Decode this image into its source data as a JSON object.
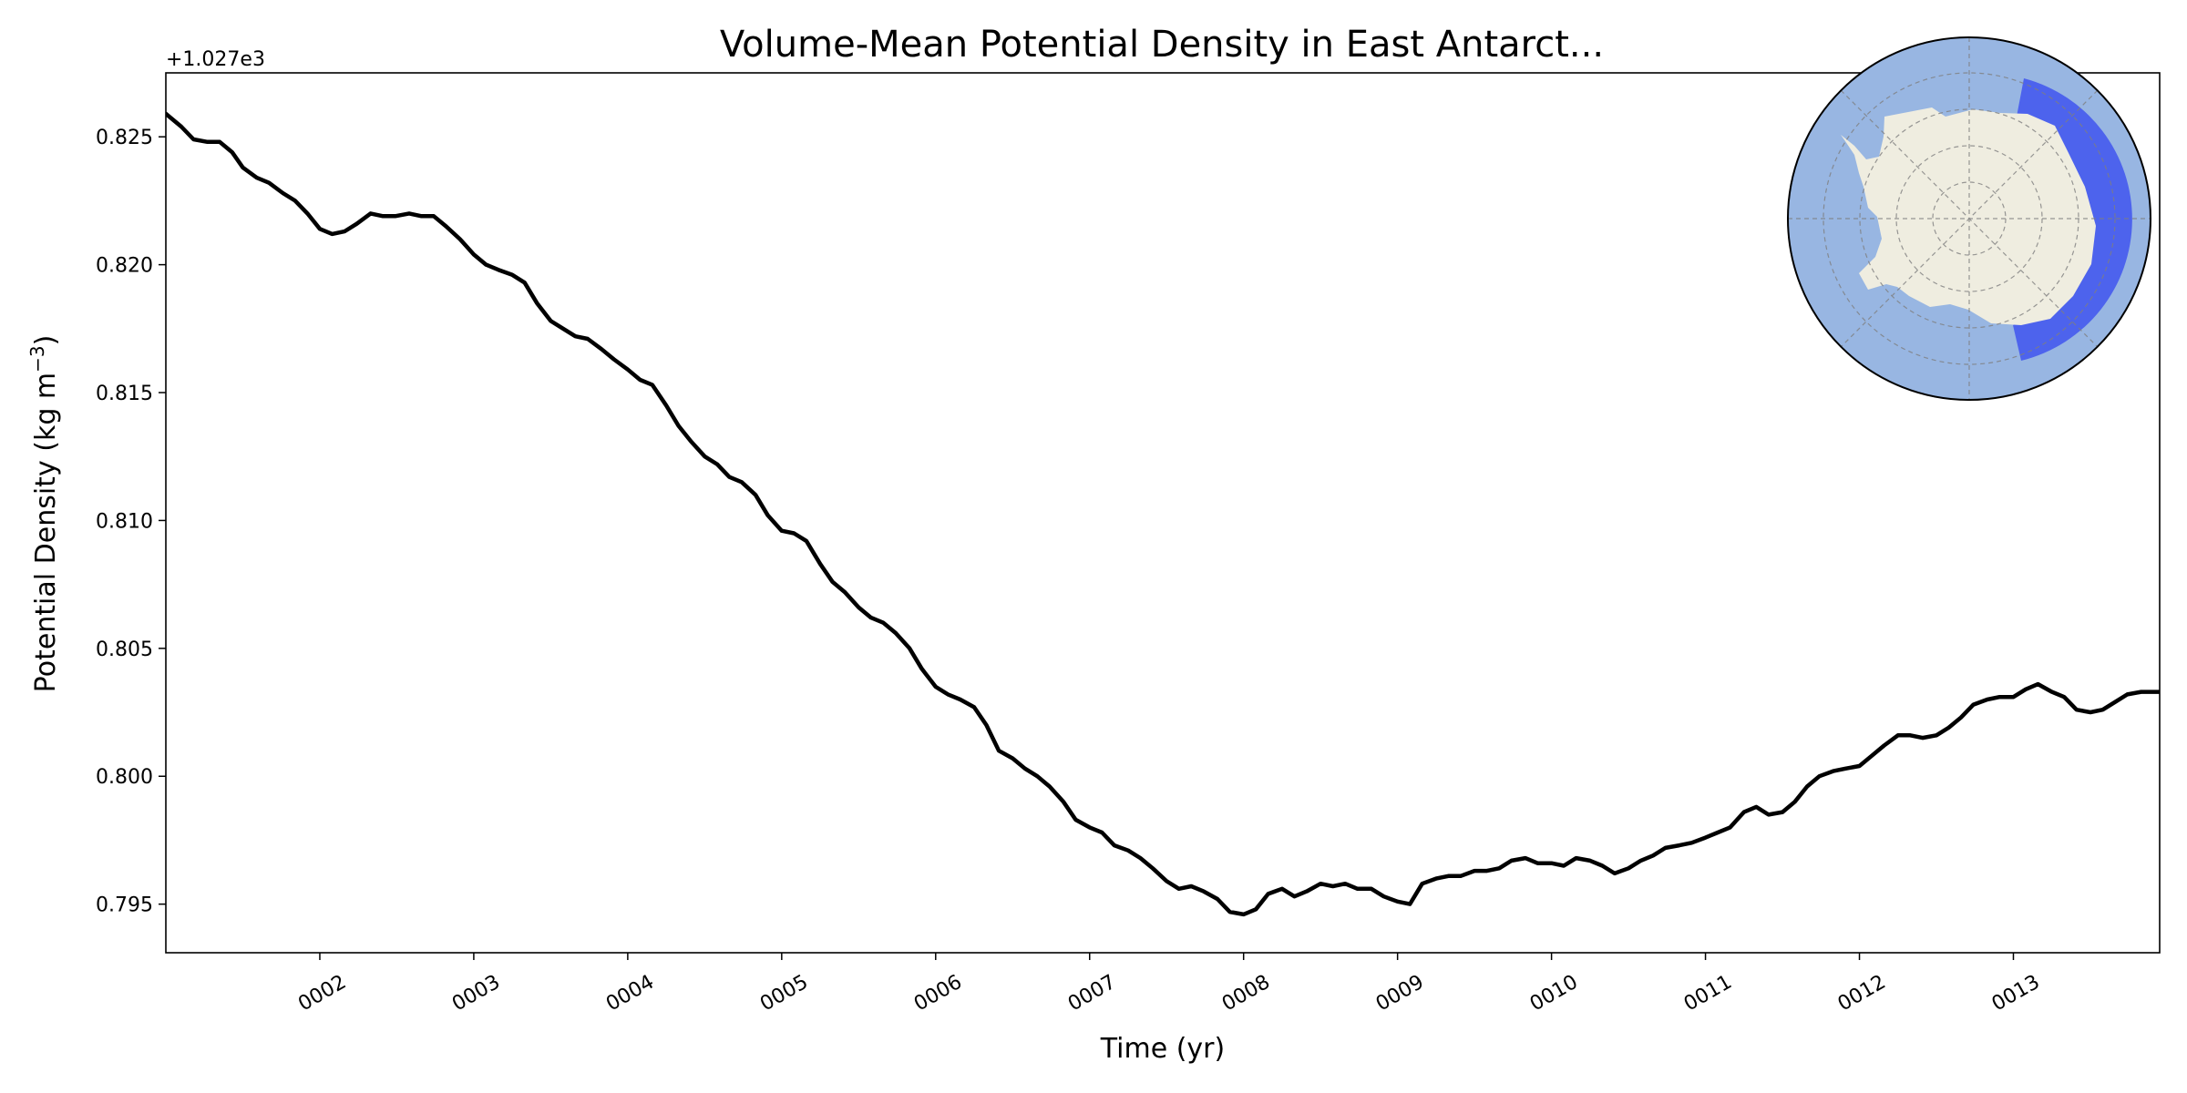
{
  "chart_data": {
    "type": "line",
    "title": "Volume-Mean Potential Density in East Antarct...",
    "xlabel": "Time (yr)",
    "ylabel_main": "Potential Density (kg m",
    "ylabel_sup": "−3",
    "ylabel_close": ")",
    "y_offset_label": "+1.027e3",
    "xlim": [
      1.0,
      13.95
    ],
    "ylim": [
      0.7931,
      0.8275
    ],
    "x_tick_values": [
      2,
      3,
      4,
      5,
      6,
      7,
      8,
      9,
      10,
      11,
      12,
      13
    ],
    "x_tick_labels": [
      "0002",
      "0003",
      "0004",
      "0005",
      "0006",
      "0007",
      "0008",
      "0009",
      "0010",
      "0011",
      "0012",
      "0013"
    ],
    "y_tick_values": [
      0.795,
      0.8,
      0.805,
      0.81,
      0.815,
      0.82,
      0.825
    ],
    "y_tick_labels": [
      "0.795",
      "0.800",
      "0.805",
      "0.810",
      "0.815",
      "0.820",
      "0.825"
    ],
    "series": [
      {
        "color": "#000000",
        "points": [
          [
            1.0,
            0.8259
          ],
          [
            1.1,
            0.8254
          ],
          [
            1.18,
            0.8249
          ],
          [
            1.27,
            0.8248
          ],
          [
            1.35,
            0.8248
          ],
          [
            1.43,
            0.8244
          ],
          [
            1.5,
            0.8238
          ],
          [
            1.59,
            0.8234
          ],
          [
            1.67,
            0.8232
          ],
          [
            1.76,
            0.8228
          ],
          [
            1.84,
            0.8225
          ],
          [
            1.92,
            0.822
          ],
          [
            2.0,
            0.8214
          ],
          [
            2.08,
            0.8212
          ],
          [
            2.16,
            0.8213
          ],
          [
            2.24,
            0.8216
          ],
          [
            2.33,
            0.822
          ],
          [
            2.41,
            0.8219
          ],
          [
            2.49,
            0.8219
          ],
          [
            2.58,
            0.822
          ],
          [
            2.66,
            0.8219
          ],
          [
            2.74,
            0.8219
          ],
          [
            2.82,
            0.8215
          ],
          [
            2.91,
            0.821
          ],
          [
            3.0,
            0.8204
          ],
          [
            3.08,
            0.82
          ],
          [
            3.16,
            0.8198
          ],
          [
            3.25,
            0.8196
          ],
          [
            3.33,
            0.8193
          ],
          [
            3.41,
            0.8185
          ],
          [
            3.5,
            0.8178
          ],
          [
            3.58,
            0.8175
          ],
          [
            3.66,
            0.8172
          ],
          [
            3.74,
            0.8171
          ],
          [
            3.83,
            0.8167
          ],
          [
            3.91,
            0.8163
          ],
          [
            4.0,
            0.8159
          ],
          [
            4.08,
            0.8155
          ],
          [
            4.16,
            0.8153
          ],
          [
            4.25,
            0.8145
          ],
          [
            4.33,
            0.8137
          ],
          [
            4.41,
            0.8131
          ],
          [
            4.5,
            0.8125
          ],
          [
            4.58,
            0.8122
          ],
          [
            4.66,
            0.8117
          ],
          [
            4.74,
            0.8115
          ],
          [
            4.83,
            0.811
          ],
          [
            4.91,
            0.8102
          ],
          [
            5.0,
            0.8096
          ],
          [
            5.08,
            0.8095
          ],
          [
            5.16,
            0.8092
          ],
          [
            5.25,
            0.8083
          ],
          [
            5.33,
            0.8076
          ],
          [
            5.41,
            0.8072
          ],
          [
            5.5,
            0.8066
          ],
          [
            5.58,
            0.8062
          ],
          [
            5.66,
            0.806
          ],
          [
            5.74,
            0.8056
          ],
          [
            5.83,
            0.805
          ],
          [
            5.91,
            0.8042
          ],
          [
            6.0,
            0.8035
          ],
          [
            6.08,
            0.8032
          ],
          [
            6.16,
            0.803
          ],
          [
            6.25,
            0.8027
          ],
          [
            6.33,
            0.802
          ],
          [
            6.41,
            0.801
          ],
          [
            6.5,
            0.8007
          ],
          [
            6.58,
            0.8003
          ],
          [
            6.66,
            0.8
          ],
          [
            6.74,
            0.7996
          ],
          [
            6.83,
            0.799
          ],
          [
            6.91,
            0.7983
          ],
          [
            7.0,
            0.798
          ],
          [
            7.08,
            0.7978
          ],
          [
            7.16,
            0.7973
          ],
          [
            7.25,
            0.7971
          ],
          [
            7.33,
            0.7968
          ],
          [
            7.41,
            0.7964
          ],
          [
            7.5,
            0.7959
          ],
          [
            7.58,
            0.7956
          ],
          [
            7.66,
            0.7957
          ],
          [
            7.74,
            0.7955
          ],
          [
            7.83,
            0.7952
          ],
          [
            7.91,
            0.7947
          ],
          [
            8.0,
            0.7946
          ],
          [
            8.08,
            0.7948
          ],
          [
            8.16,
            0.7954
          ],
          [
            8.25,
            0.7956
          ],
          [
            8.33,
            0.7953
          ],
          [
            8.41,
            0.7955
          ],
          [
            8.5,
            0.7958
          ],
          [
            8.58,
            0.7957
          ],
          [
            8.66,
            0.7958
          ],
          [
            8.74,
            0.7956
          ],
          [
            8.83,
            0.7956
          ],
          [
            8.91,
            0.7953
          ],
          [
            9.0,
            0.7951
          ],
          [
            9.08,
            0.795
          ],
          [
            9.16,
            0.7958
          ],
          [
            9.25,
            0.796
          ],
          [
            9.33,
            0.7961
          ],
          [
            9.41,
            0.7961
          ],
          [
            9.5,
            0.7963
          ],
          [
            9.58,
            0.7963
          ],
          [
            9.66,
            0.7964
          ],
          [
            9.74,
            0.7967
          ],
          [
            9.83,
            0.7968
          ],
          [
            9.91,
            0.7966
          ],
          [
            10.0,
            0.7966
          ],
          [
            10.08,
            0.7965
          ],
          [
            10.16,
            0.7968
          ],
          [
            10.25,
            0.7967
          ],
          [
            10.33,
            0.7965
          ],
          [
            10.41,
            0.7962
          ],
          [
            10.5,
            0.7964
          ],
          [
            10.58,
            0.7967
          ],
          [
            10.66,
            0.7969
          ],
          [
            10.74,
            0.7972
          ],
          [
            10.83,
            0.7973
          ],
          [
            10.91,
            0.7974
          ],
          [
            11.0,
            0.7976
          ],
          [
            11.08,
            0.7978
          ],
          [
            11.16,
            0.798
          ],
          [
            11.25,
            0.7986
          ],
          [
            11.33,
            0.7988
          ],
          [
            11.41,
            0.7985
          ],
          [
            11.5,
            0.7986
          ],
          [
            11.58,
            0.799
          ],
          [
            11.66,
            0.7996
          ],
          [
            11.74,
            0.8
          ],
          [
            11.83,
            0.8002
          ],
          [
            11.91,
            0.8003
          ],
          [
            12.0,
            0.8004
          ],
          [
            12.08,
            0.8008
          ],
          [
            12.16,
            0.8012
          ],
          [
            12.25,
            0.8016
          ],
          [
            12.33,
            0.8016
          ],
          [
            12.41,
            0.8015
          ],
          [
            12.5,
            0.8016
          ],
          [
            12.58,
            0.8019
          ],
          [
            12.66,
            0.8023
          ],
          [
            12.74,
            0.8028
          ],
          [
            12.83,
            0.803
          ],
          [
            12.91,
            0.8031
          ],
          [
            13.0,
            0.8031
          ],
          [
            13.08,
            0.8034
          ],
          [
            13.16,
            0.8036
          ],
          [
            13.25,
            0.8033
          ],
          [
            13.33,
            0.8031
          ],
          [
            13.41,
            0.8026
          ],
          [
            13.5,
            0.8025
          ],
          [
            13.58,
            0.8026
          ],
          [
            13.66,
            0.8029
          ],
          [
            13.74,
            0.8032
          ],
          [
            13.83,
            0.8033
          ],
          [
            13.95,
            0.8033
          ]
        ]
      }
    ],
    "grid": false,
    "legend": "none",
    "inset": {
      "type": "south-polar-map",
      "location": "top-right",
      "ocean_color": "#98b6e2",
      "land_color": "#efede0",
      "region_color": "#3b4ff0"
    }
  }
}
